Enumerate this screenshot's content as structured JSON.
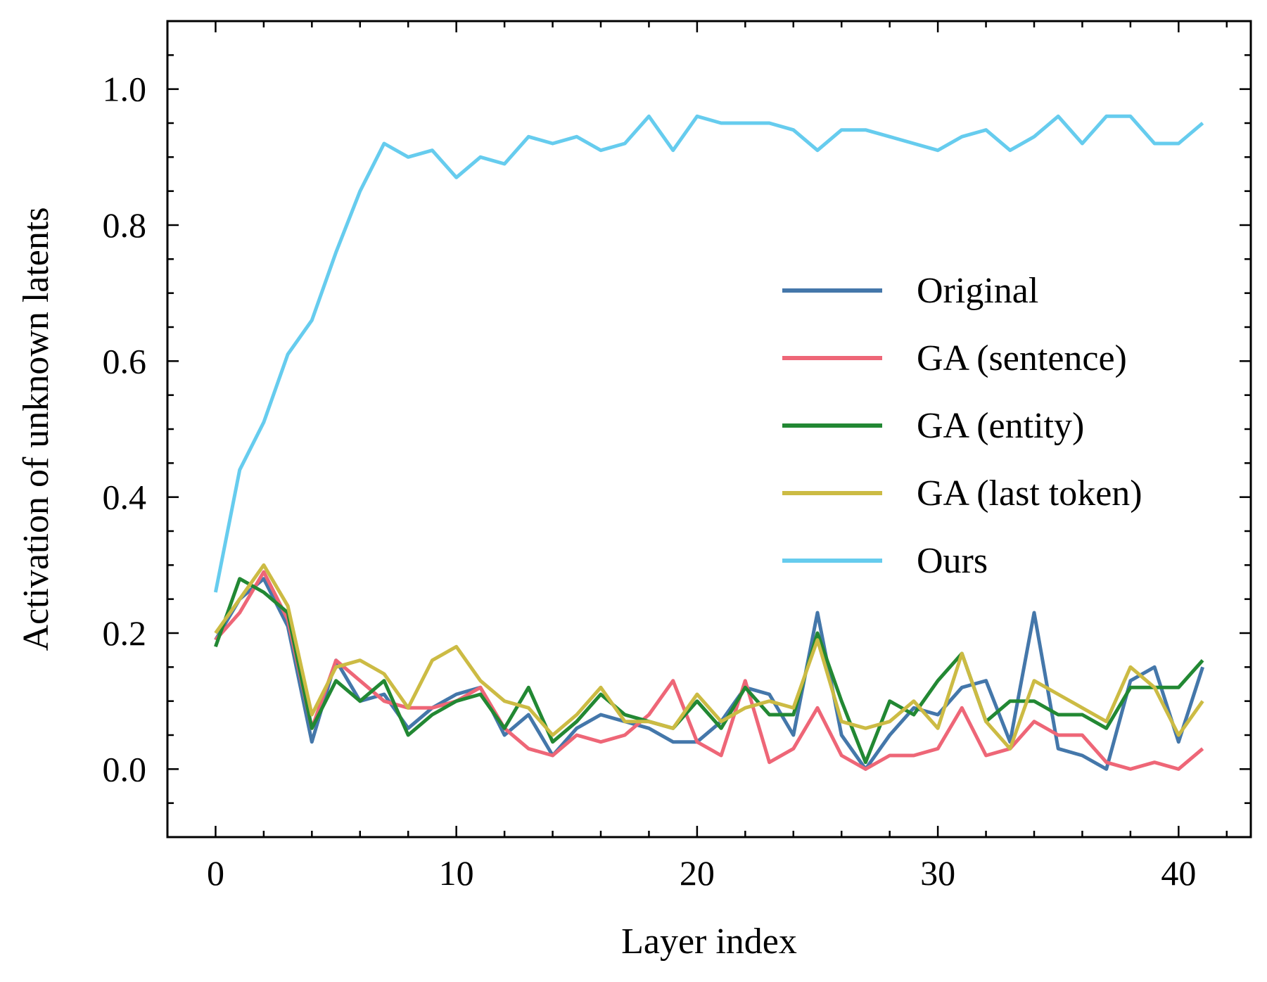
{
  "chart_data": {
    "type": "line",
    "title": "",
    "xlabel": "Layer index",
    "ylabel": "Activation of unknown latents",
    "xlim": [
      -2,
      43
    ],
    "ylim": [
      -0.1,
      1.1
    ],
    "xticks": [
      0,
      10,
      20,
      30,
      40
    ],
    "yticks": [
      0.0,
      0.2,
      0.4,
      0.6,
      0.8,
      1.0
    ],
    "xtick_labels": [
      "0",
      "10",
      "20",
      "30",
      "40"
    ],
    "ytick_labels": [
      "0.0",
      "0.2",
      "0.4",
      "0.6",
      "0.8",
      "1.0"
    ],
    "x_minor_step": 2,
    "y_minor_step": 0.05,
    "grid": false,
    "legend_position": "center-right",
    "x": [
      0,
      1,
      2,
      3,
      4,
      5,
      6,
      7,
      8,
      9,
      10,
      11,
      12,
      13,
      14,
      15,
      16,
      17,
      18,
      19,
      20,
      21,
      22,
      23,
      24,
      25,
      26,
      27,
      28,
      29,
      30,
      31,
      32,
      33,
      34,
      35,
      36,
      37,
      38,
      39,
      40,
      41
    ],
    "series": [
      {
        "name": "Original",
        "color": "#4477AA",
        "values": [
          0.19,
          0.25,
          0.28,
          0.21,
          0.04,
          0.16,
          0.1,
          0.11,
          0.06,
          0.09,
          0.11,
          0.12,
          0.05,
          0.08,
          0.02,
          0.06,
          0.08,
          0.07,
          0.06,
          0.04,
          0.04,
          0.07,
          0.12,
          0.11,
          0.05,
          0.23,
          0.05,
          0.0,
          0.05,
          0.09,
          0.08,
          0.12,
          0.13,
          0.04,
          0.23,
          0.03,
          0.02,
          0.0,
          0.13,
          0.15,
          0.04,
          0.15
        ]
      },
      {
        "name": "GA (sentence)",
        "color": "#EE6677",
        "values": [
          0.19,
          0.23,
          0.29,
          0.22,
          0.06,
          0.16,
          0.13,
          0.1,
          0.09,
          0.09,
          0.1,
          0.12,
          0.06,
          0.03,
          0.02,
          0.05,
          0.04,
          0.05,
          0.08,
          0.13,
          0.04,
          0.02,
          0.13,
          0.01,
          0.03,
          0.09,
          0.02,
          0.0,
          0.02,
          0.02,
          0.03,
          0.09,
          0.02,
          0.03,
          0.07,
          0.05,
          0.05,
          0.01,
          0.0,
          0.01,
          0.0,
          0.03
        ]
      },
      {
        "name": "GA (entity)",
        "color": "#228833",
        "values": [
          0.18,
          0.28,
          0.26,
          0.23,
          0.06,
          0.13,
          0.1,
          0.13,
          0.05,
          0.08,
          0.1,
          0.11,
          0.06,
          0.12,
          0.04,
          0.07,
          0.11,
          0.08,
          0.07,
          0.06,
          0.1,
          0.06,
          0.12,
          0.08,
          0.08,
          0.2,
          0.1,
          0.01,
          0.1,
          0.08,
          0.13,
          0.17,
          0.07,
          0.1,
          0.1,
          0.08,
          0.08,
          0.06,
          0.12,
          0.12,
          0.12,
          0.16
        ]
      },
      {
        "name": "GA (last token)",
        "color": "#CCBB44",
        "values": [
          0.2,
          0.25,
          0.3,
          0.24,
          0.08,
          0.15,
          0.16,
          0.14,
          0.09,
          0.16,
          0.18,
          0.13,
          0.1,
          0.09,
          0.05,
          0.08,
          0.12,
          0.07,
          0.07,
          0.06,
          0.11,
          0.07,
          0.09,
          0.1,
          0.09,
          0.19,
          0.07,
          0.06,
          0.07,
          0.1,
          0.06,
          0.17,
          0.07,
          0.03,
          0.13,
          0.11,
          0.09,
          0.07,
          0.15,
          0.12,
          0.05,
          0.1
        ]
      },
      {
        "name": "Ours",
        "color": "#66CCEE",
        "values": [
          0.26,
          0.44,
          0.51,
          0.61,
          0.66,
          0.76,
          0.85,
          0.92,
          0.9,
          0.91,
          0.87,
          0.9,
          0.89,
          0.93,
          0.92,
          0.93,
          0.91,
          0.92,
          0.96,
          0.91,
          0.96,
          0.95,
          0.95,
          0.95,
          0.94,
          0.91,
          0.94,
          0.94,
          0.93,
          0.92,
          0.91,
          0.93,
          0.94,
          0.91,
          0.93,
          0.96,
          0.92,
          0.96,
          0.96,
          0.92,
          0.92,
          0.95
        ]
      }
    ]
  }
}
